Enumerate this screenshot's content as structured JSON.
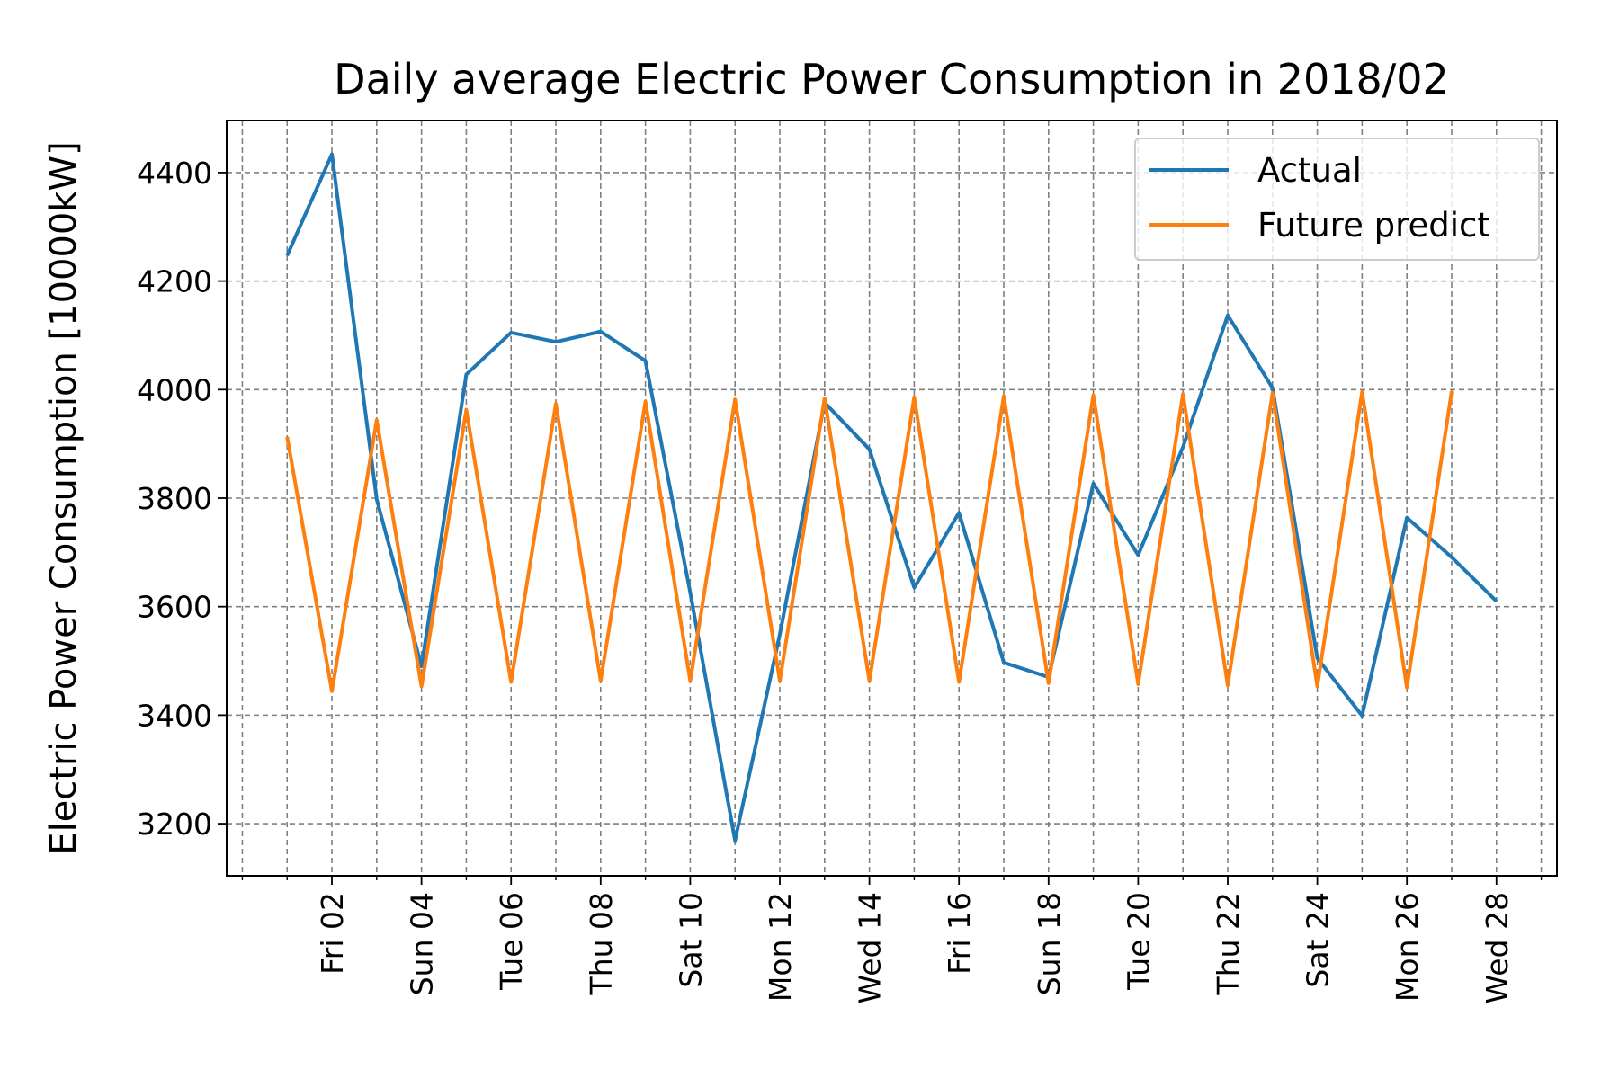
{
  "chart_data": {
    "type": "line",
    "title": "Daily average Electric Power Consumption in 2018/02",
    "y_label": "Electric Power Consumption [10000kW]",
    "x": [
      1,
      2,
      3,
      4,
      5,
      6,
      7,
      8,
      9,
      10,
      11,
      12,
      13,
      14,
      15,
      16,
      17,
      18,
      19,
      20,
      21,
      22,
      23,
      24,
      25,
      26,
      27,
      28
    ],
    "series": [
      {
        "name": "Actual",
        "color": "#1f77b4",
        "values": [
          4247,
          4434,
          3798,
          3490,
          4028,
          4105,
          4088,
          4107,
          4053,
          3626,
          3169,
          3549,
          3976,
          3890,
          3635,
          3773,
          3497,
          3470,
          3827,
          3695,
          3894,
          4137,
          4003,
          3505,
          3399,
          3764,
          3691,
          3610
        ]
      },
      {
        "name": "Future predict",
        "color": "#ff7f0e",
        "values": [
          3913,
          3444,
          3944,
          3453,
          3963,
          3461,
          3974,
          3463,
          3978,
          3463,
          3982,
          3463,
          3984,
          3463,
          3986,
          3461,
          3988,
          3459,
          3990,
          3457,
          3992,
          3455,
          3994,
          3453,
          3996,
          3451,
          3997,
          null
        ]
      }
    ],
    "xlim": [
      -0.35,
      29.35
    ],
    "xticks": [
      {
        "value": 2,
        "label": "Fri 02"
      },
      {
        "value": 4,
        "label": "Sun 04"
      },
      {
        "value": 6,
        "label": "Tue 06"
      },
      {
        "value": 8,
        "label": "Thu 08"
      },
      {
        "value": 10,
        "label": "Sat 10"
      },
      {
        "value": 12,
        "label": "Mon 12"
      },
      {
        "value": 14,
        "label": "Wed 14"
      },
      {
        "value": 16,
        "label": "Fri 16"
      },
      {
        "value": 18,
        "label": "Sun 18"
      },
      {
        "value": 20,
        "label": "Tue 20"
      },
      {
        "value": 22,
        "label": "Thu 22"
      },
      {
        "value": 24,
        "label": "Sat 24"
      },
      {
        "value": 26,
        "label": "Mon 26"
      },
      {
        "value": 28,
        "label": "Wed 28"
      }
    ],
    "xminor_ticks": [
      0,
      1,
      3,
      5,
      7,
      9,
      11,
      13,
      15,
      17,
      19,
      21,
      23,
      25,
      27,
      29
    ],
    "ylim": [
      3104,
      4496
    ],
    "yticks": [
      3200,
      3400,
      3600,
      3800,
      4000,
      4200,
      4400
    ],
    "grid": true,
    "legend": "upper right"
  }
}
